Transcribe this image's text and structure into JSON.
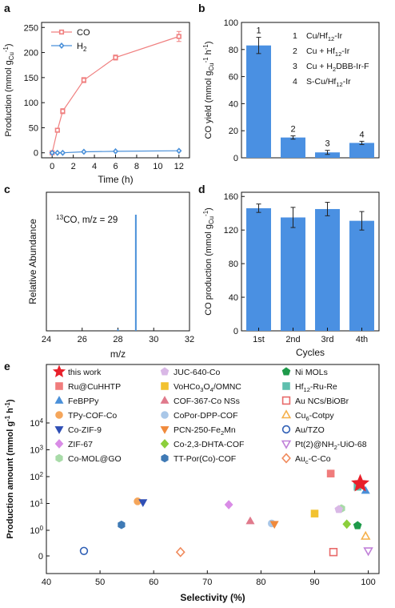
{
  "colors": {
    "co": "#f08080",
    "h2": "#4a90d9",
    "bar": "#4a90e2",
    "err": "#222222",
    "star": "#e8202a"
  },
  "panel_labels": [
    "a",
    "b",
    "c",
    "d",
    "e"
  ],
  "chart_data": [
    {
      "panel": "a",
      "type": "line",
      "x": [
        0,
        0.5,
        1,
        3,
        6,
        12
      ],
      "xlabel": "Time (h)",
      "ylabel": "Production (mmol g{sub:Cu}{sup:-1})",
      "xlim": [
        -1,
        13
      ],
      "ylim": [
        -10,
        260
      ],
      "xticks": [
        "0",
        "2",
        "4",
        "6",
        "8",
        "10",
        "12"
      ],
      "yticks": [
        "0",
        "50",
        "100",
        "150",
        "200",
        "250"
      ],
      "legend_position": "top-left",
      "series": [
        {
          "name": "CO",
          "values": [
            0,
            45,
            83,
            145,
            190,
            232
          ],
          "errors": [
            1,
            3,
            5,
            5,
            5,
            10
          ],
          "color": "#f08080",
          "marker": "square"
        },
        {
          "name": "H{sub:2}",
          "values": [
            0,
            0,
            0,
            2,
            3,
            4
          ],
          "errors": [
            0,
            0,
            0,
            0,
            0,
            0
          ],
          "color": "#4a90d9",
          "marker": "diamond"
        }
      ]
    },
    {
      "panel": "b",
      "type": "bar",
      "categories": [
        "1",
        "2",
        "3",
        "4"
      ],
      "values": [
        83,
        15,
        4,
        11
      ],
      "errors": [
        6,
        1.2,
        1.5,
        1.2
      ],
      "ylabel": "CO yield (mmol g{sub:Cu}{sup:-1} h{sup:-1})",
      "ylim": [
        0,
        100
      ],
      "yticks": [
        "0",
        "20",
        "40",
        "60",
        "80",
        "100"
      ],
      "legend": [
        {
          "num": "1",
          "text": "Cu/Hf{sub:12}-Ir"
        },
        {
          "num": "2",
          "text": "Cu + Hf{sub:12}-Ir"
        },
        {
          "num": "3",
          "text": "Cu + H{sub:2}DBB-Ir-F"
        },
        {
          "num": "4",
          "text": "S-Cu/Hf{sub:12}-Ir"
        }
      ]
    },
    {
      "panel": "c",
      "type": "bar",
      "x": [
        28,
        29
      ],
      "values": [
        0.015,
        1.0
      ],
      "annotation": "{sup:13}CO, m/z = 29",
      "xlabel": "m/z",
      "ylabel": "Relative Abundance",
      "xlim": [
        24,
        32
      ],
      "xticks": [
        "24",
        "26",
        "28",
        "30",
        "32"
      ]
    },
    {
      "panel": "d",
      "type": "bar",
      "categories": [
        "1st",
        "2nd",
        "3rd",
        "4th"
      ],
      "values": [
        146,
        135,
        145,
        131
      ],
      "errors": [
        5,
        12,
        8,
        11
      ],
      "xlabel": "Cycles",
      "ylabel": "CO production (mmol g{sub:Cu}{sup:-1})",
      "ylim": [
        0,
        165
      ],
      "yticks": [
        "0",
        "40",
        "80",
        "120",
        "160"
      ]
    },
    {
      "panel": "e",
      "type": "scatter",
      "xlabel": "Selectivity (%)",
      "ylabel": "Production amount (mmol g{sup:-1} h{sup:-1})",
      "xlim": [
        40,
        102
      ],
      "xticks": [
        "40",
        "50",
        "60",
        "70",
        "80",
        "90",
        "100"
      ],
      "yscale": "log",
      "yticks": [
        "0",
        "10{sup:0}",
        "10{sup:1}",
        "10{sup:2}",
        "10{sup:3}",
        "10{sup:4}"
      ],
      "legend_position": "top",
      "series": [
        {
          "name": "this work",
          "marker": "star",
          "color": "#e8202a",
          "filled": true,
          "x": 98.5,
          "y": 55
        },
        {
          "name": "Ru@CuHHTP",
          "marker": "square",
          "color": "#f07c7c",
          "filled": true,
          "x": 93,
          "y": 130
        },
        {
          "name": "FeBPPy",
          "marker": "triangle-up",
          "color": "#4a90d9",
          "filled": true,
          "x": 99.5,
          "y": 30
        },
        {
          "name": "TPy-COF-Co",
          "marker": "circle",
          "color": "#f5a65b",
          "filled": true,
          "x": 57,
          "y": 12
        },
        {
          "name": "Co-ZIF-9",
          "marker": "triangle-down",
          "color": "#2f4fb5",
          "filled": true,
          "x": 58,
          "y": 11
        },
        {
          "name": "ZIF-67",
          "marker": "diamond",
          "color": "#d98ce6",
          "filled": true,
          "x": 74,
          "y": 9
        },
        {
          "name": "Co-MOL@GO",
          "marker": "hexagon",
          "color": "#a8dba8",
          "filled": true,
          "x": 95,
          "y": 6.5
        },
        {
          "name": "JUC-640-Co",
          "marker": "pentagon",
          "color": "#d9b8e6",
          "filled": true,
          "x": 94.5,
          "y": 6
        },
        {
          "name": "VoHCo{sub:3}O{sub:4}/OMNC",
          "marker": "square",
          "color": "#f2c230",
          "filled": true,
          "x": 90,
          "y": 4.2
        },
        {
          "name": "COF-367-Co NSs",
          "marker": "triangle-up",
          "color": "#e07a8c",
          "filled": true,
          "x": 78,
          "y": 2.2
        },
        {
          "name": "CoPor-DPP-COF",
          "marker": "circle",
          "color": "#a9c7e8",
          "filled": true,
          "x": 82,
          "y": 1.8
        },
        {
          "name": "PCN-250-Fe{sub:2}Mn",
          "marker": "triangle-down",
          "color": "#f08a3c",
          "filled": true,
          "x": 82.5,
          "y": 1.7
        },
        {
          "name": "Co-2,3-DHTA-COF",
          "marker": "diamond",
          "color": "#8ccf3c",
          "filled": true,
          "x": 96,
          "y": 1.7
        },
        {
          "name": "TT-Por(Co)-COF",
          "marker": "hexagon",
          "color": "#3f7ab5",
          "filled": true,
          "x": 54,
          "y": 1.6
        },
        {
          "name": "Ni MOLs",
          "marker": "pentagon",
          "color": "#1e9a4a",
          "filled": true,
          "x": 98,
          "y": 1.5
        },
        {
          "name": "Hf{sub:12}-Ru-Re",
          "marker": "square",
          "color": "#5fbfae",
          "filled": true,
          "x": 98,
          "y": 42
        },
        {
          "name": "Au NCs/BiOBr",
          "marker": "square",
          "color": "#e86a6a",
          "filled": false,
          "x": 93.5,
          "y": 0.06
        },
        {
          "name": "Cu{sub:6}-Cotpy",
          "marker": "triangle-up",
          "color": "#f5b04a",
          "filled": false,
          "x": 99.5,
          "y": 0.6
        },
        {
          "name": "Au/TZO",
          "marker": "circle",
          "color": "#2f5fb5",
          "filled": false,
          "x": 47,
          "y": 0.17
        },
        {
          "name": "Pt(2)@NH{sub:2}-UiO-68",
          "marker": "triangle-down",
          "color": "#c080d8",
          "filled": false,
          "x": 100,
          "y": 0.08
        },
        {
          "name": "Au{sub:c}-C-Co",
          "marker": "diamond",
          "color": "#f08a5c",
          "filled": false,
          "x": 65,
          "y": 0.06
        }
      ]
    }
  ]
}
